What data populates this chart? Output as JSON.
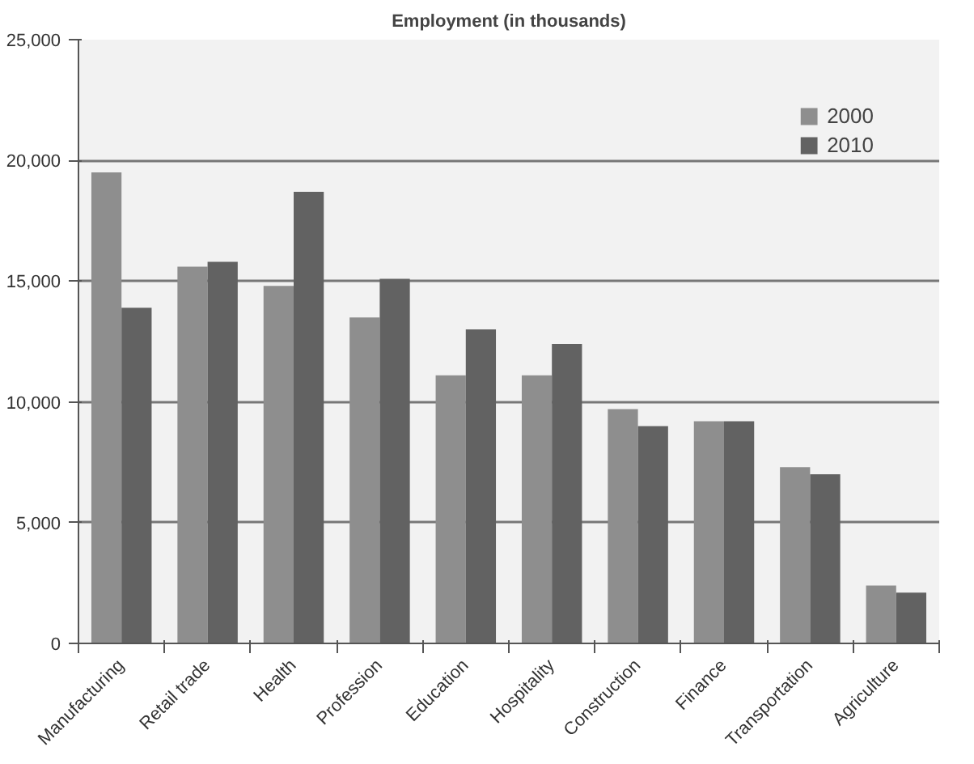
{
  "chart_data": {
    "type": "bar",
    "title": "Employment (in thousands)",
    "categories": [
      "Manufacturing",
      "Retail trade",
      "Health",
      "Profession",
      "Education",
      "Hospitality",
      "Construction",
      "Finance",
      "Transportation",
      "Agriculture"
    ],
    "series": [
      {
        "name": "2000",
        "color": "#8e8e8e",
        "values": [
          19500,
          15600,
          14800,
          13500,
          11100,
          11100,
          9700,
          9200,
          7300,
          2400
        ]
      },
      {
        "name": "2010",
        "color": "#626262",
        "values": [
          13900,
          15800,
          18700,
          15100,
          13000,
          12400,
          9000,
          9200,
          7000,
          2100
        ]
      }
    ],
    "ylim": [
      0,
      25000
    ],
    "yticks": [
      {
        "value": 0,
        "label": "0"
      },
      {
        "value": 5000,
        "label": "5,000"
      },
      {
        "value": 10000,
        "label": "10,000"
      },
      {
        "value": 15000,
        "label": "15,000"
      },
      {
        "value": 20000,
        "label": "20,000"
      },
      {
        "value": 25000,
        "label": "25,000"
      }
    ],
    "grid": "y",
    "legend": "top right"
  }
}
